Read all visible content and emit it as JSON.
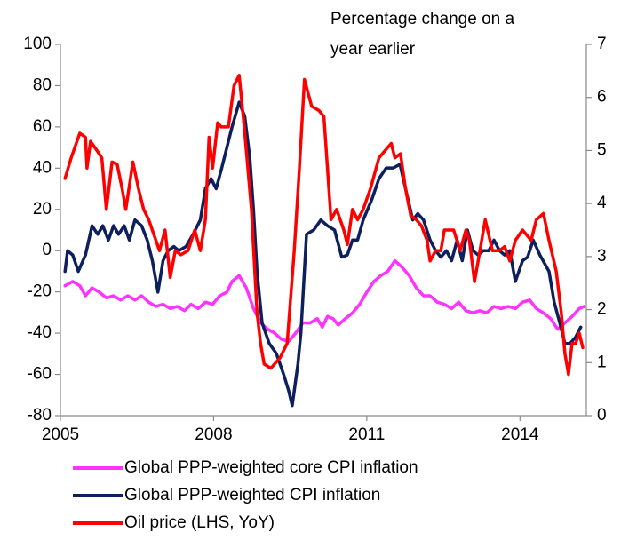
{
  "chart_data": {
    "type": "line",
    "annotation": [
      "Percentage change on a",
      "year earlier"
    ],
    "xlim": [
      2005,
      2015.3
    ],
    "xticks": [
      2005,
      2008,
      2011,
      2014
    ],
    "ylim": [
      -80,
      100
    ],
    "yticks": [
      -80,
      -60,
      -40,
      -20,
      0,
      20,
      40,
      60,
      80,
      100
    ],
    "y2lim": [
      0,
      7
    ],
    "y2ticks": [
      0,
      1,
      2,
      3,
      4,
      5,
      6,
      7
    ],
    "grid": false,
    "legend": "bottom",
    "series": [
      {
        "name": "Global PPP-weighted core CPI inflation",
        "color": "#ff33ff",
        "axis": "y2",
        "x": [
          2005.09,
          2005.24,
          2005.38,
          2005.49,
          2005.62,
          2005.76,
          2005.9,
          2006.04,
          2006.18,
          2006.32,
          2006.46,
          2006.59,
          2006.73,
          2006.87,
          2007.01,
          2007.15,
          2007.29,
          2007.43,
          2007.56,
          2007.7,
          2007.84,
          2007.98,
          2008.12,
          2008.26,
          2008.36,
          2008.5,
          2008.64,
          2008.78,
          2008.92,
          2009.06,
          2009.19,
          2009.33,
          2009.47,
          2009.61,
          2009.75,
          2009.89,
          2010.03,
          2010.13,
          2010.23,
          2010.34,
          2010.44,
          2010.58,
          2010.72,
          2010.86,
          2011.0,
          2011.14,
          2011.27,
          2011.41,
          2011.55,
          2011.69,
          2011.83,
          2011.97,
          2012.11,
          2012.24,
          2012.38,
          2012.52,
          2012.66,
          2012.8,
          2012.94,
          2013.08,
          2013.21,
          2013.35,
          2013.49,
          2013.63,
          2013.77,
          2013.91,
          2014.05,
          2014.19,
          2014.32,
          2014.46,
          2014.6,
          2014.74,
          2014.88,
          2015.02,
          2015.16,
          2015.26
        ],
        "values": [
          2.45,
          2.53,
          2.45,
          2.26,
          2.41,
          2.33,
          2.22,
          2.26,
          2.18,
          2.26,
          2.18,
          2.26,
          2.14,
          2.06,
          2.1,
          2.02,
          2.06,
          1.98,
          2.1,
          2.02,
          2.14,
          2.1,
          2.26,
          2.33,
          2.53,
          2.64,
          2.41,
          2.02,
          1.75,
          1.63,
          1.56,
          1.44,
          1.4,
          1.56,
          1.75,
          1.75,
          1.83,
          1.67,
          1.87,
          1.83,
          1.71,
          1.83,
          1.94,
          2.1,
          2.33,
          2.53,
          2.64,
          2.72,
          2.92,
          2.8,
          2.64,
          2.41,
          2.26,
          2.26,
          2.14,
          2.1,
          2.02,
          2.14,
          1.98,
          1.94,
          1.98,
          1.94,
          2.06,
          2.02,
          2.06,
          2.02,
          2.14,
          2.18,
          2.02,
          1.94,
          1.83,
          1.63,
          1.75,
          1.87,
          2.02,
          2.06
        ]
      },
      {
        "name": "Global PPP-weighted CPI inflation",
        "color": "#0d1f5c",
        "axis": "y2",
        "x": [
          2005.09,
          2005.14,
          2005.24,
          2005.35,
          2005.49,
          2005.62,
          2005.73,
          2005.83,
          2005.94,
          2006.04,
          2006.14,
          2006.25,
          2006.35,
          2006.46,
          2006.59,
          2006.7,
          2006.8,
          2006.91,
          2007.01,
          2007.11,
          2007.22,
          2007.32,
          2007.46,
          2007.6,
          2007.74,
          2007.84,
          2007.95,
          2008.05,
          2008.16,
          2008.26,
          2008.36,
          2008.5,
          2008.61,
          2008.71,
          2008.78,
          2008.85,
          2008.95,
          2009.09,
          2009.23,
          2009.37,
          2009.47,
          2009.54,
          2009.65,
          2009.71,
          2009.82,
          2009.96,
          2010.1,
          2010.23,
          2010.37,
          2010.51,
          2010.62,
          2010.72,
          2010.82,
          2010.93,
          2011.1,
          2011.24,
          2011.38,
          2011.52,
          2011.65,
          2011.76,
          2011.9,
          2012.0,
          2012.11,
          2012.24,
          2012.35,
          2012.45,
          2012.56,
          2012.66,
          2012.77,
          2012.87,
          2012.97,
          2013.08,
          2013.18,
          2013.28,
          2013.39,
          2013.49,
          2013.6,
          2013.7,
          2013.8,
          2013.91,
          2014.05,
          2014.15,
          2014.26,
          2014.39,
          2014.57,
          2014.67,
          2014.78,
          2014.88,
          2014.98,
          2015.09,
          2015.19
        ],
        "values": [
          2.72,
          3.11,
          3.03,
          2.72,
          3.03,
          3.58,
          3.42,
          3.58,
          3.31,
          3.58,
          3.42,
          3.58,
          3.31,
          3.69,
          3.58,
          3.31,
          2.92,
          2.33,
          2.92,
          3.11,
          3.19,
          3.11,
          3.19,
          3.42,
          3.69,
          4.28,
          4.47,
          4.28,
          4.67,
          5.06,
          5.44,
          5.91,
          5.64,
          4.86,
          3.89,
          2.72,
          1.75,
          1.36,
          1.17,
          0.78,
          0.47,
          0.19,
          0.97,
          1.56,
          3.42,
          3.5,
          3.69,
          3.58,
          3.5,
          2.99,
          3.03,
          3.31,
          3.31,
          3.69,
          4.08,
          4.47,
          4.67,
          4.67,
          4.74,
          4.28,
          3.69,
          3.81,
          3.69,
          3.31,
          3.11,
          2.99,
          3.11,
          2.92,
          3.31,
          2.92,
          3.5,
          3.11,
          3.03,
          3.11,
          3.11,
          3.31,
          3.11,
          3.03,
          3.11,
          2.53,
          2.92,
          2.99,
          3.31,
          3.03,
          2.72,
          2.14,
          1.75,
          1.36,
          1.36,
          1.48,
          1.67
        ]
      },
      {
        "name": "Oil price (LHS, YoY)",
        "color": "#ff0000",
        "axis": "y",
        "x": [
          2005.09,
          2005.21,
          2005.38,
          2005.49,
          2005.52,
          2005.59,
          2005.73,
          2005.81,
          2005.9,
          2006.01,
          2006.11,
          2006.21,
          2006.28,
          2006.42,
          2006.53,
          2006.63,
          2006.73,
          2006.94,
          2007.05,
          2007.15,
          2007.25,
          2007.36,
          2007.5,
          2007.63,
          2007.74,
          2007.84,
          2007.91,
          2007.98,
          2008.08,
          2008.15,
          2008.29,
          2008.4,
          2008.5,
          2008.6,
          2008.74,
          2008.85,
          2008.92,
          2008.99,
          2009.12,
          2009.3,
          2009.44,
          2009.58,
          2009.68,
          2009.78,
          2009.92,
          2010.06,
          2010.16,
          2010.3,
          2010.41,
          2010.55,
          2010.62,
          2010.72,
          2010.82,
          2010.93,
          2011.07,
          2011.24,
          2011.34,
          2011.48,
          2011.55,
          2011.66,
          2011.76,
          2011.86,
          2011.97,
          2012.07,
          2012.18,
          2012.24,
          2012.35,
          2012.45,
          2012.52,
          2012.63,
          2012.7,
          2012.83,
          2012.94,
          2013.01,
          2013.11,
          2013.18,
          2013.32,
          2013.46,
          2013.6,
          2013.7,
          2013.8,
          2013.91,
          2014.05,
          2014.22,
          2014.32,
          2014.46,
          2014.57,
          2014.71,
          2014.81,
          2014.88,
          2014.95,
          2015.02,
          2015.09,
          2015.16,
          2015.23
        ],
        "values": [
          35,
          45,
          57,
          55,
          40,
          53,
          48,
          45,
          20,
          43,
          42,
          30,
          20,
          43,
          30,
          20,
          15,
          0,
          10,
          -13,
          0,
          -2,
          0,
          10,
          0,
          15,
          55,
          40,
          62,
          60,
          60,
          80,
          85,
          60,
          20,
          -30,
          -45,
          -55,
          -57,
          -52,
          -45,
          0,
          40,
          83,
          70,
          68,
          65,
          15,
          20,
          10,
          3,
          20,
          15,
          20,
          30,
          45,
          48,
          52,
          45,
          47,
          30,
          17,
          15,
          12,
          5,
          -5,
          0,
          0,
          10,
          10,
          10,
          0,
          10,
          5,
          -15,
          -5,
          15,
          0,
          0,
          2,
          -5,
          5,
          10,
          5,
          15,
          18,
          5,
          -10,
          -30,
          -50,
          -60,
          -45,
          -45,
          -40,
          -47
        ]
      }
    ]
  }
}
